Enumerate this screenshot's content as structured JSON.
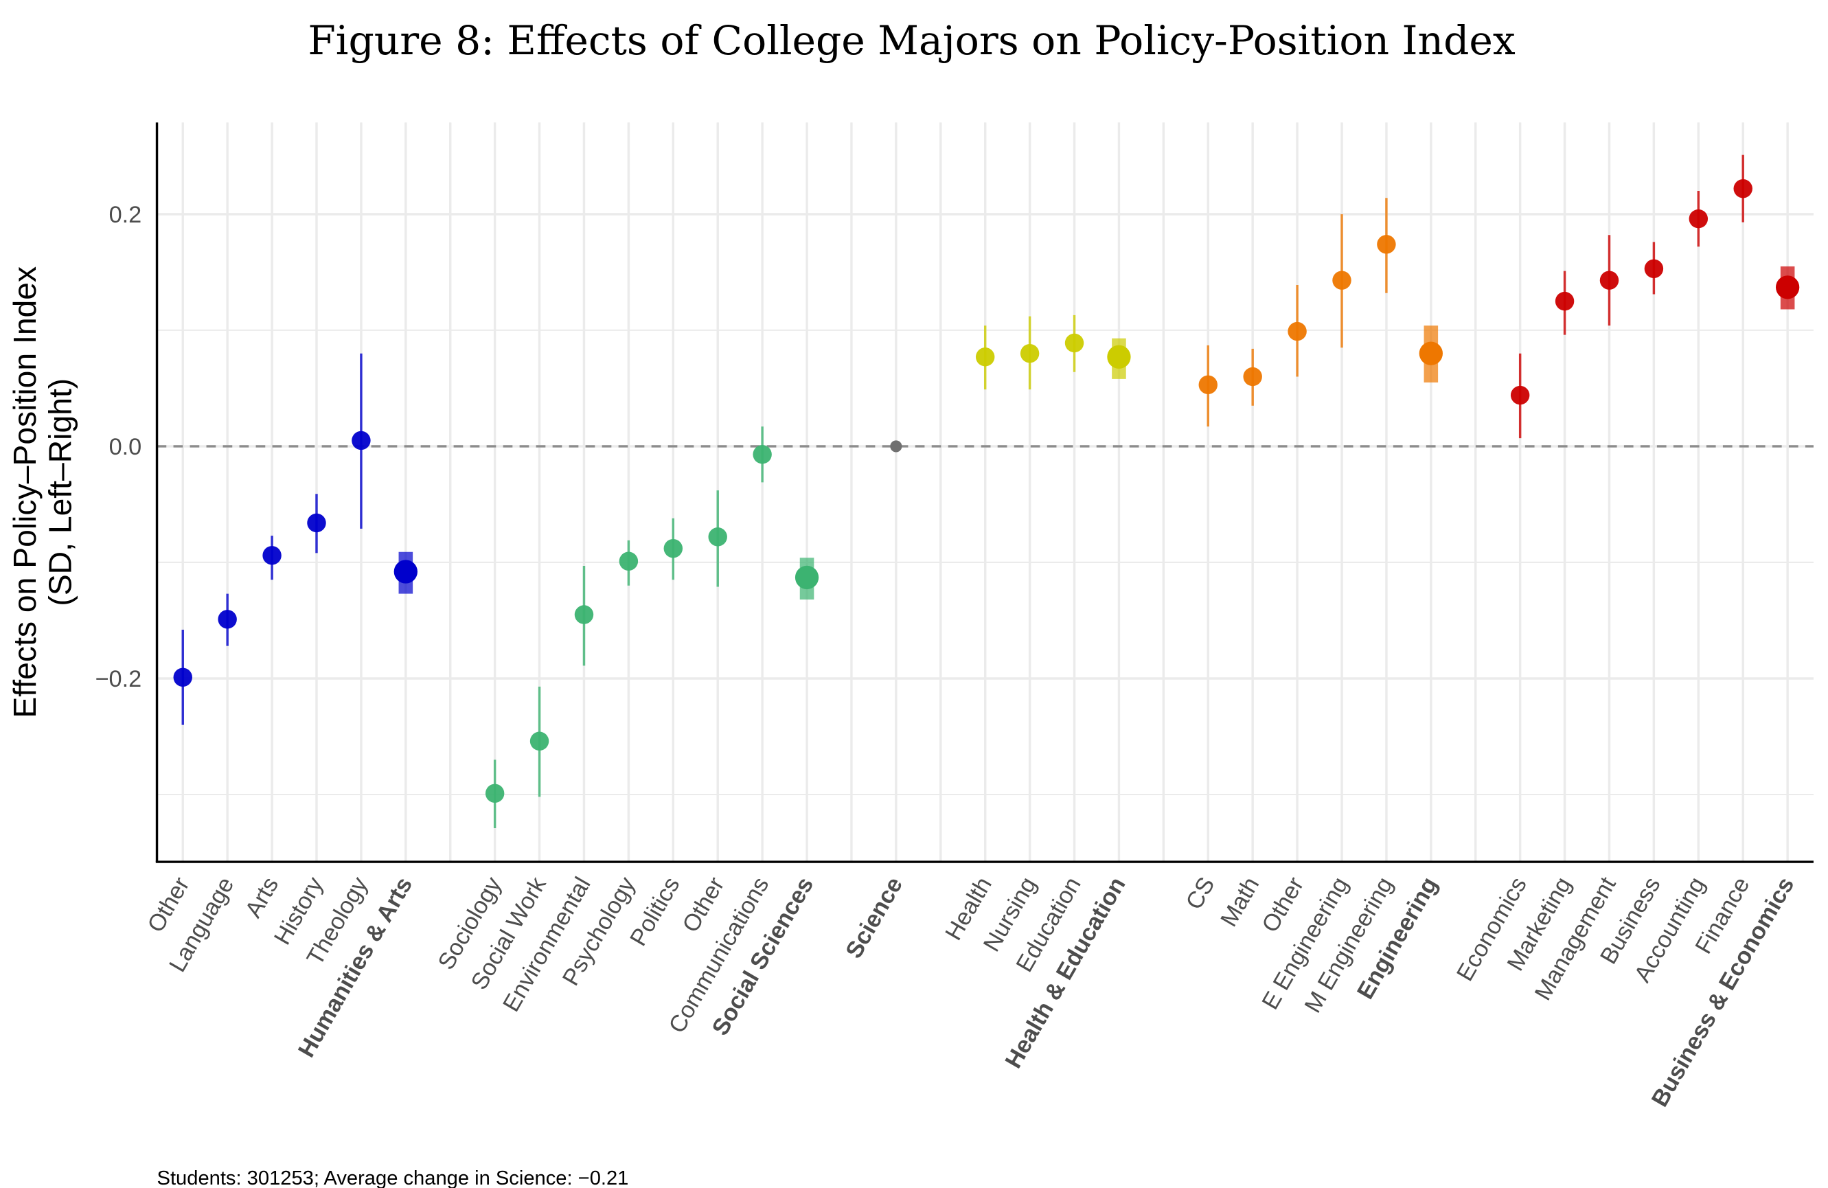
{
  "chart_data": {
    "type": "scatter",
    "subtype": "point-range (coefficient plot)",
    "title": "Figure 8: Effects of College Majors on Policy-Position Index",
    "ylabel_line1": "Effects on Policy–Position Index",
    "ylabel_line2": "(SD, Left–Right)",
    "xlabel": "",
    "ylim": [
      -0.358,
      0.279
    ],
    "yticks": [
      -0.2,
      0.0,
      0.2
    ],
    "ytick_labels": [
      "−0.2",
      "0.0",
      "0.2"
    ],
    "minor_gridlines": [
      -0.3,
      -0.1,
      0.1
    ],
    "reference_line": 0.0,
    "grid": true,
    "caption": "Students: 301253; Average change in Science: −0.21",
    "colors": {
      "humanities": "#0000CC",
      "social": "#3CB371",
      "science": "#707070",
      "health": "#CCCC00",
      "engineering": "#EE7700",
      "business": "#CC0000"
    },
    "points": [
      {
        "slot": 0,
        "label": "Other",
        "group": "humanities",
        "estimate": -0.199,
        "lo": -0.24,
        "hi": -0.158,
        "aggregate": false
      },
      {
        "slot": 1,
        "label": "Language",
        "group": "humanities",
        "estimate": -0.149,
        "lo": -0.172,
        "hi": -0.127,
        "aggregate": false
      },
      {
        "slot": 2,
        "label": "Arts",
        "group": "humanities",
        "estimate": -0.094,
        "lo": -0.115,
        "hi": -0.077,
        "aggregate": false
      },
      {
        "slot": 3,
        "label": "History",
        "group": "humanities",
        "estimate": -0.066,
        "lo": -0.092,
        "hi": -0.041,
        "aggregate": false
      },
      {
        "slot": 4,
        "label": "Theology",
        "group": "humanities",
        "estimate": 0.005,
        "lo": -0.071,
        "hi": 0.08,
        "aggregate": false
      },
      {
        "slot": 5,
        "label": "Humanities & Arts",
        "group": "humanities",
        "estimate": -0.108,
        "lo": -0.127,
        "hi": -0.091,
        "aggregate": true
      },
      {
        "slot": 7,
        "label": "Sociology",
        "group": "social",
        "estimate": -0.299,
        "lo": -0.329,
        "hi": -0.27,
        "aggregate": false
      },
      {
        "slot": 8,
        "label": "Social Work",
        "group": "social",
        "estimate": -0.254,
        "lo": -0.302,
        "hi": -0.207,
        "aggregate": false
      },
      {
        "slot": 9,
        "label": "Environmental",
        "group": "social",
        "estimate": -0.145,
        "lo": -0.189,
        "hi": -0.103,
        "aggregate": false
      },
      {
        "slot": 10,
        "label": "Psychology",
        "group": "social",
        "estimate": -0.099,
        "lo": -0.12,
        "hi": -0.081,
        "aggregate": false
      },
      {
        "slot": 11,
        "label": "Politics",
        "group": "social",
        "estimate": -0.088,
        "lo": -0.115,
        "hi": -0.062,
        "aggregate": false
      },
      {
        "slot": 12,
        "label": "Other",
        "group": "social",
        "estimate": -0.078,
        "lo": -0.121,
        "hi": -0.038,
        "aggregate": false
      },
      {
        "slot": 13,
        "label": "Communications",
        "group": "social",
        "estimate": -0.007,
        "lo": -0.031,
        "hi": 0.017,
        "aggregate": false
      },
      {
        "slot": 14,
        "label": "Social Sciences",
        "group": "social",
        "estimate": -0.113,
        "lo": -0.132,
        "hi": -0.096,
        "aggregate": true
      },
      {
        "slot": 16,
        "label": "Science",
        "group": "science",
        "estimate": 0.0,
        "lo": 0.0,
        "hi": 0.0,
        "aggregate": true,
        "reference": true
      },
      {
        "slot": 18,
        "label": "Health",
        "group": "health",
        "estimate": 0.077,
        "lo": 0.049,
        "hi": 0.104,
        "aggregate": false
      },
      {
        "slot": 19,
        "label": "Nursing",
        "group": "health",
        "estimate": 0.08,
        "lo": 0.049,
        "hi": 0.112,
        "aggregate": false
      },
      {
        "slot": 20,
        "label": "Education",
        "group": "health",
        "estimate": 0.089,
        "lo": 0.064,
        "hi": 0.113,
        "aggregate": false
      },
      {
        "slot": 21,
        "label": "Health & Education",
        "group": "health",
        "estimate": 0.077,
        "lo": 0.058,
        "hi": 0.093,
        "aggregate": true
      },
      {
        "slot": 23,
        "label": "CS",
        "group": "engineering",
        "estimate": 0.053,
        "lo": 0.017,
        "hi": 0.087,
        "aggregate": false
      },
      {
        "slot": 24,
        "label": "Math",
        "group": "engineering",
        "estimate": 0.06,
        "lo": 0.035,
        "hi": 0.084,
        "aggregate": false
      },
      {
        "slot": 25,
        "label": "Other",
        "group": "engineering",
        "estimate": 0.099,
        "lo": 0.06,
        "hi": 0.139,
        "aggregate": false
      },
      {
        "slot": 26,
        "label": "E Engineering",
        "group": "engineering",
        "estimate": 0.143,
        "lo": 0.085,
        "hi": 0.2,
        "aggregate": false
      },
      {
        "slot": 27,
        "label": "M Engineering",
        "group": "engineering",
        "estimate": 0.174,
        "lo": 0.132,
        "hi": 0.214,
        "aggregate": false
      },
      {
        "slot": 28,
        "label": "Engineering",
        "group": "engineering",
        "estimate": 0.08,
        "lo": 0.055,
        "hi": 0.104,
        "aggregate": true
      },
      {
        "slot": 30,
        "label": "Economics",
        "group": "business",
        "estimate": 0.044,
        "lo": 0.007,
        "hi": 0.08,
        "aggregate": false
      },
      {
        "slot": 31,
        "label": "Marketing",
        "group": "business",
        "estimate": 0.125,
        "lo": 0.096,
        "hi": 0.151,
        "aggregate": false
      },
      {
        "slot": 32,
        "label": "Management",
        "group": "business",
        "estimate": 0.143,
        "lo": 0.104,
        "hi": 0.182,
        "aggregate": false
      },
      {
        "slot": 33,
        "label": "Business",
        "group": "business",
        "estimate": 0.153,
        "lo": 0.131,
        "hi": 0.176,
        "aggregate": false
      },
      {
        "slot": 34,
        "label": "Accounting",
        "group": "business",
        "estimate": 0.196,
        "lo": 0.172,
        "hi": 0.22,
        "aggregate": false
      },
      {
        "slot": 35,
        "label": "Finance",
        "group": "business",
        "estimate": 0.222,
        "lo": 0.193,
        "hi": 0.251,
        "aggregate": false
      },
      {
        "slot": 36,
        "label": "Business & Economics",
        "group": "business",
        "estimate": 0.137,
        "lo": 0.118,
        "hi": 0.155,
        "aggregate": true
      }
    ]
  }
}
